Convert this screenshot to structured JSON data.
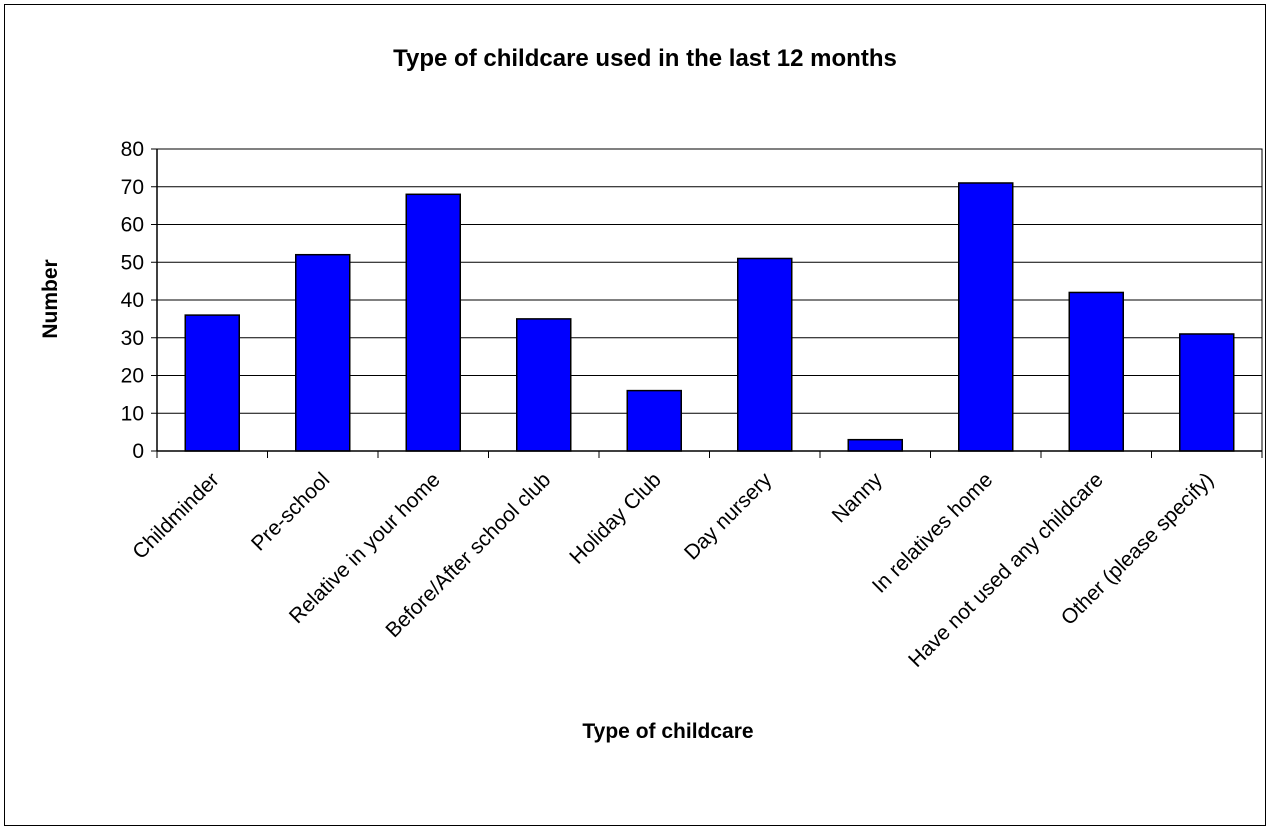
{
  "chart_data": {
    "type": "bar",
    "title": "Type of childcare used in the last 12 months",
    "xlabel": "Type of childcare",
    "ylabel": "Number",
    "categories": [
      "Childminder",
      "Pre-school",
      "Relative in your home",
      "Before/After school club",
      "Holiday Club",
      "Day nursery",
      "Nanny",
      "In relatives home",
      "Have not used any childcare",
      "Other (please specify)"
    ],
    "values": [
      36,
      52,
      68,
      35,
      16,
      51,
      3,
      71,
      42,
      31
    ],
    "ylim": [
      0,
      80
    ],
    "yticks": [
      0,
      10,
      20,
      30,
      40,
      50,
      60,
      70,
      80
    ],
    "grid": true,
    "legend": "none",
    "colors": {
      "bar": "#0000ff",
      "bar_stroke": "#000000",
      "grid": "#000000"
    }
  }
}
